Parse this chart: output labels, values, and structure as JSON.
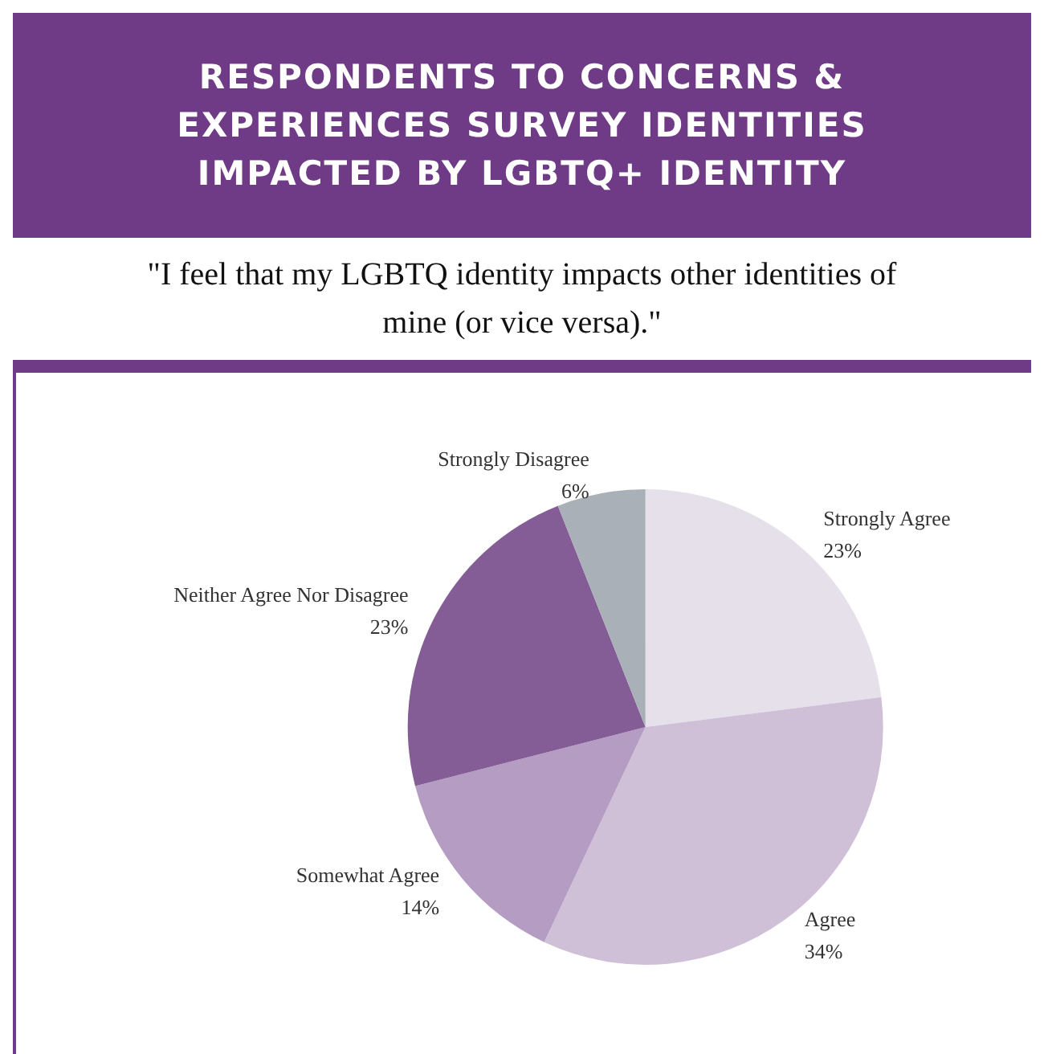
{
  "chart_data": {
    "type": "pie",
    "title": "RESPONDENTS TO CONCERNS & EXPERIENCES SURVEY IDENTITIES IMPACTED BY LGBTQ+ IDENTITY",
    "subtitle": "\"I feel that my LGBTQ identity impacts other identities of mine (or vice versa).\"",
    "categories": [
      "Strongly Agree",
      "Agree",
      "Somewhat Agree",
      "Neither Agree Nor Disagree",
      "Strongly Disagree"
    ],
    "values": [
      23,
      34,
      14,
      23,
      6
    ],
    "colors": [
      "#e6e0ea",
      "#cfc0d8",
      "#b49cc3",
      "#845c96",
      "#a9b0b7"
    ],
    "value_labels": [
      "23%",
      "34%",
      "14%",
      "23%",
      "6%"
    ],
    "legend": false
  }
}
